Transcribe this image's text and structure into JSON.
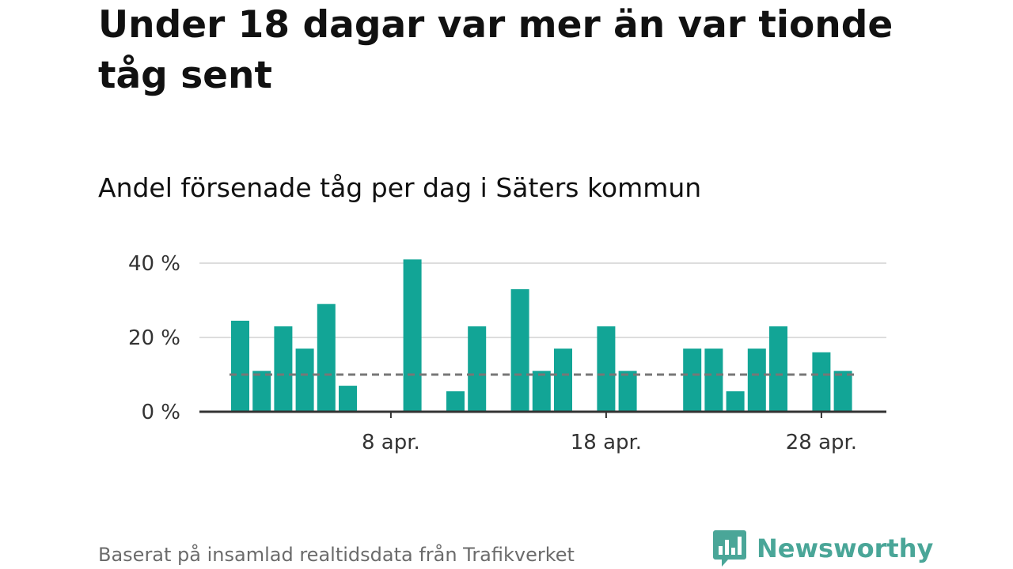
{
  "title": "Under 18 dagar var mer än var tionde tåg sent",
  "subtitle": "Andel försenade tåg per dag i Säters kommun",
  "source": "Baserat på insamlad realtidsdata från Trafikverket",
  "brand": {
    "name": "Newsworthy",
    "logo_icon": "newsworthy-bar-chart-speech-bubble-icon",
    "color": "#4aa698"
  },
  "colors": {
    "bar": "#12a596",
    "reference_line": "#777777",
    "grid": "#dddddd",
    "axis": "#333333"
  },
  "chart_data": {
    "type": "bar",
    "title": "Andel försenade tåg per dag i Säters kommun",
    "xlabel": "",
    "ylabel": "",
    "x_unit": "day of April",
    "categories": [
      1,
      2,
      3,
      4,
      5,
      6,
      7,
      8,
      9,
      10,
      11,
      12,
      13,
      14,
      15,
      16,
      17,
      18,
      19,
      20,
      21,
      22,
      23,
      24,
      25,
      26,
      27,
      28,
      29
    ],
    "values": [
      24.5,
      11,
      23,
      17,
      29,
      7,
      0,
      0,
      41,
      0,
      5.5,
      23,
      0,
      33,
      11,
      17,
      0,
      23,
      11,
      0,
      0,
      17,
      17,
      5.5,
      17,
      23,
      0,
      16,
      11
    ],
    "reference_line": 10,
    "ylim": [
      0,
      40
    ],
    "y_ticks": [
      {
        "value": 0,
        "label": "0 %"
      },
      {
        "value": 20,
        "label": "20 %"
      },
      {
        "value": 40,
        "label": "40 %"
      }
    ],
    "x_ticks": [
      {
        "value": 8,
        "label": "8 apr."
      },
      {
        "value": 18,
        "label": "18 apr."
      },
      {
        "value": 28,
        "label": "28 apr."
      }
    ],
    "grid": true,
    "legend": "none"
  }
}
